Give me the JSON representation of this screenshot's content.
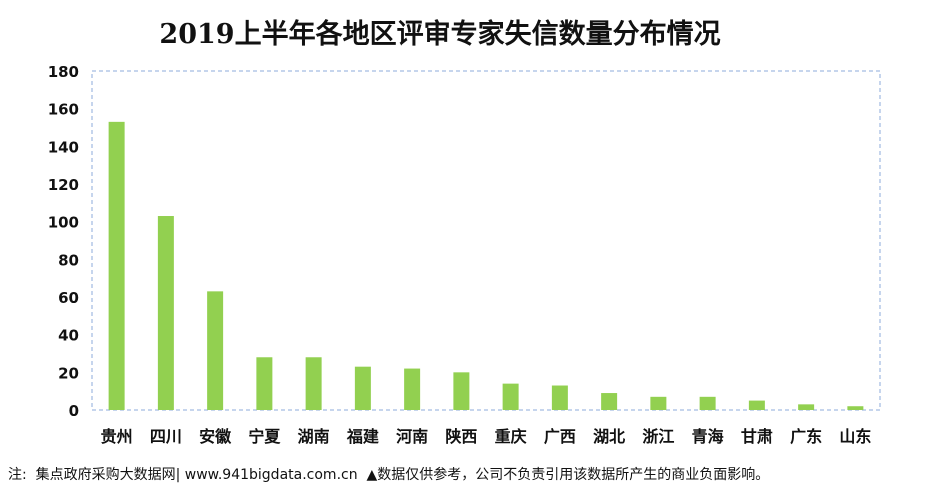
{
  "chart_data": {
    "type": "bar",
    "title": "2019上半年各地区评审专家失信数量分布情况",
    "categories": [
      "贵州",
      "四川",
      "安徽",
      "宁夏",
      "湖南",
      "福建",
      "河南",
      "陕西",
      "重庆",
      "广西",
      "湖北",
      "浙江",
      "青海",
      "甘肃",
      "广东",
      "山东"
    ],
    "values": [
      153,
      103,
      63,
      28,
      28,
      23,
      22,
      20,
      14,
      13,
      9,
      7,
      7,
      5,
      3,
      2
    ],
    "ylim": [
      0,
      180
    ],
    "yticks": [
      0,
      20,
      40,
      60,
      80,
      100,
      120,
      140,
      160,
      180
    ],
    "xlabel": "",
    "ylabel": "",
    "grid": false,
    "bar_color": "#92d050"
  },
  "footnote": "注:  集点政府采购大数据网| www.941bigdata.com.cn  ▲数据仅供参考，公司不负责引用该数据所产生的商业负面影响。"
}
